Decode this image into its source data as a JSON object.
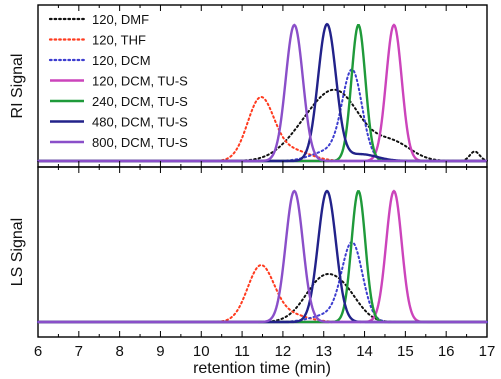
{
  "chart_data": {
    "type": "line",
    "xlabel": "retention time (min)",
    "xlim": [
      6,
      17
    ],
    "x_ticks": [
      "6",
      "7",
      "8",
      "9",
      "10",
      "11",
      "12",
      "13",
      "14",
      "15",
      "16",
      "17"
    ],
    "grid": false,
    "legend_position": "top-left",
    "panels": [
      {
        "id": "ri",
        "ylabel": "RI Signal",
        "ylim": [
          0,
          1.05
        ]
      },
      {
        "id": "ls",
        "ylabel": "LS Signal",
        "ylim": [
          0,
          1.05
        ]
      }
    ],
    "series": [
      {
        "name": "120, DMF",
        "color": "#111111",
        "dash": "dotted",
        "ri": {
          "peaks": [
            [
              13.4,
              0.44,
              0.55
            ],
            [
              12.6,
              0.2,
              0.55
            ],
            [
              14.7,
              0.13,
              0.45
            ],
            [
              16.7,
              0.07,
              0.12
            ]
          ]
        },
        "ls": {
          "peaks": [
            [
              13.0,
              0.32,
              0.45
            ],
            [
              13.6,
              0.12,
              0.35
            ]
          ]
        }
      },
      {
        "name": "120, THF",
        "color": "#ff3b1f",
        "dash": "dotted",
        "ri": {
          "peaks": [
            [
              11.45,
              0.45,
              0.32
            ],
            [
              12.2,
              0.08,
              0.45
            ]
          ]
        },
        "ls": {
          "peaks": [
            [
              11.45,
              0.4,
              0.32
            ],
            [
              12.1,
              0.06,
              0.45
            ]
          ]
        }
      },
      {
        "name": "120, DCM",
        "color": "#3d3dcf",
        "dash": "dotted",
        "ri": {
          "peaks": [
            [
              13.7,
              0.63,
              0.24
            ],
            [
              13.2,
              0.08,
              0.45
            ]
          ]
        },
        "ls": {
          "peaks": [
            [
              13.7,
              0.56,
              0.25
            ],
            [
              13.2,
              0.06,
              0.45
            ]
          ]
        }
      },
      {
        "name": "120, DCM, TU-S",
        "color": "#cc44bb",
        "dash": "solid",
        "ri": {
          "peaks": [
            [
              14.72,
              1.0,
              0.19
            ]
          ]
        },
        "ls": {
          "peaks": [
            [
              14.72,
              0.97,
              0.19
            ]
          ]
        }
      },
      {
        "name": "240, DCM, TU-S",
        "color": "#1f9a3a",
        "dash": "solid",
        "ri": {
          "peaks": [
            [
              13.85,
              1.0,
              0.17
            ]
          ]
        },
        "ls": {
          "peaks": [
            [
              13.85,
              0.97,
              0.17
            ]
          ]
        }
      },
      {
        "name": "480, DCM, TU-S",
        "color": "#22228a",
        "dash": "solid",
        "ri": {
          "peaks": [
            [
              13.08,
              1.0,
              0.22
            ],
            [
              13.9,
              0.05,
              0.4
            ]
          ]
        },
        "ls": {
          "peaks": [
            [
              13.08,
              0.97,
              0.22
            ]
          ]
        }
      },
      {
        "name": "800, DCM, TU-S",
        "color": "#8a4fc9",
        "dash": "solid",
        "ri": {
          "peaks": [
            [
              12.28,
              1.0,
              0.21
            ]
          ]
        },
        "ls": {
          "peaks": [
            [
              12.28,
              0.97,
              0.21
            ]
          ]
        }
      }
    ]
  }
}
